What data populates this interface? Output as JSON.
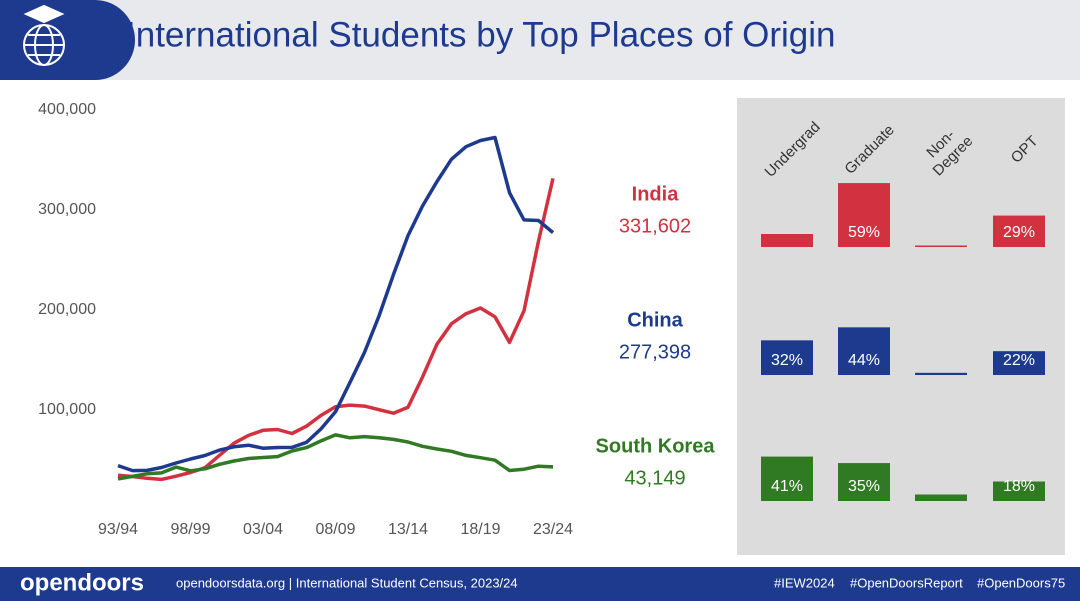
{
  "header": {
    "title": "International Students by Top Places of Origin"
  },
  "footer": {
    "logo": "opendoors",
    "source": "opendoorsdata.org | International Student Census, 2023/24",
    "hashtags": [
      "#IEW2024",
      "#OpenDoorsReport",
      "#OpenDoors75"
    ]
  },
  "chart_data": [
    {
      "type": "line",
      "categories": [
        "93/94",
        null,
        null,
        null,
        null,
        "98/99",
        null,
        null,
        null,
        null,
        "03/04",
        null,
        null,
        null,
        null,
        "08/09",
        null,
        null,
        null,
        null,
        "13/14",
        null,
        null,
        null,
        null,
        "18/19",
        null,
        null,
        null,
        null,
        "23/24"
      ],
      "ylim": [
        0,
        400000
      ],
      "yticks": [
        {
          "value": 100000,
          "label": "100,000"
        },
        {
          "value": 200000,
          "label": "200,000"
        },
        {
          "value": 300000,
          "label": "300,000"
        },
        {
          "value": 400000,
          "label": "400,000"
        }
      ],
      "grid": false,
      "series": [
        {
          "name": "India",
          "color": "#d2323f",
          "values": [
            34800,
            33500,
            31700,
            30600,
            33800,
            37500,
            42300,
            54700,
            66800,
            74600,
            79700,
            80500,
            76500,
            83800,
            94600,
            103300,
            104900,
            103900,
            100300,
            96800,
            102700,
            132900,
            165900,
            186300,
            196300,
            202000,
            193100,
            167600,
            199200,
            268900,
            331602
          ],
          "value_labels": [
            null,
            null,
            null,
            null,
            null,
            null,
            null,
            null,
            null,
            null,
            null,
            null,
            null,
            null,
            null,
            null,
            null,
            null,
            null,
            null,
            null,
            null,
            null,
            null,
            null,
            null,
            null,
            null,
            null,
            null,
            "331,602"
          ]
        },
        {
          "name": "China",
          "color": "#1d3a8e",
          "values": [
            44400,
            39400,
            39600,
            42500,
            47000,
            51000,
            54500,
            59900,
            63200,
            64800,
            61800,
            62500,
            62600,
            67700,
            81100,
            98200,
            127600,
            157600,
            194000,
            235600,
            274400,
            304000,
            328500,
            350800,
            363300,
            369500,
            372500,
            317300,
            290100,
            289500,
            277398
          ],
          "value_labels": [
            null,
            null,
            null,
            null,
            null,
            null,
            null,
            null,
            null,
            null,
            null,
            null,
            null,
            null,
            null,
            null,
            null,
            null,
            null,
            null,
            null,
            null,
            null,
            null,
            null,
            null,
            null,
            null,
            null,
            null,
            "277,398"
          ]
        },
        {
          "name": "South Korea",
          "color": "#2f7a22",
          "values": [
            31100,
            33600,
            36200,
            37100,
            42900,
            39200,
            41200,
            45700,
            49000,
            51500,
            52500,
            53400,
            59000,
            62400,
            69100,
            75100,
            72200,
            73400,
            72300,
            70600,
            68000,
            63700,
            61000,
            58700,
            54600,
            52300,
            49800,
            39500,
            40800,
            43800,
            43149
          ],
          "value_labels": [
            null,
            null,
            null,
            null,
            null,
            null,
            null,
            null,
            null,
            null,
            null,
            null,
            null,
            null,
            null,
            null,
            null,
            null,
            null,
            null,
            null,
            null,
            null,
            null,
            null,
            null,
            null,
            null,
            null,
            null,
            "43,149"
          ]
        }
      ]
    },
    {
      "type": "bar",
      "categories": [
        "Undergrad",
        "Graduate",
        "Non-\nDegree",
        "OPT"
      ],
      "ylim": [
        0,
        60
      ],
      "series": [
        {
          "color": "#d2323f",
          "values": [
            12,
            59,
            0.5,
            29
          ],
          "value_labels": [
            null,
            "59%",
            null,
            "29%"
          ]
        },
        {
          "color": "#1d3a8e",
          "values": [
            32,
            44,
            2,
            22
          ],
          "value_labels": [
            "32%",
            "44%",
            null,
            "22%"
          ]
        },
        {
          "color": "#2f7a22",
          "values": [
            41,
            35,
            6,
            18
          ],
          "value_labels": [
            "41%",
            "35%",
            null,
            "18%"
          ]
        }
      ]
    }
  ]
}
